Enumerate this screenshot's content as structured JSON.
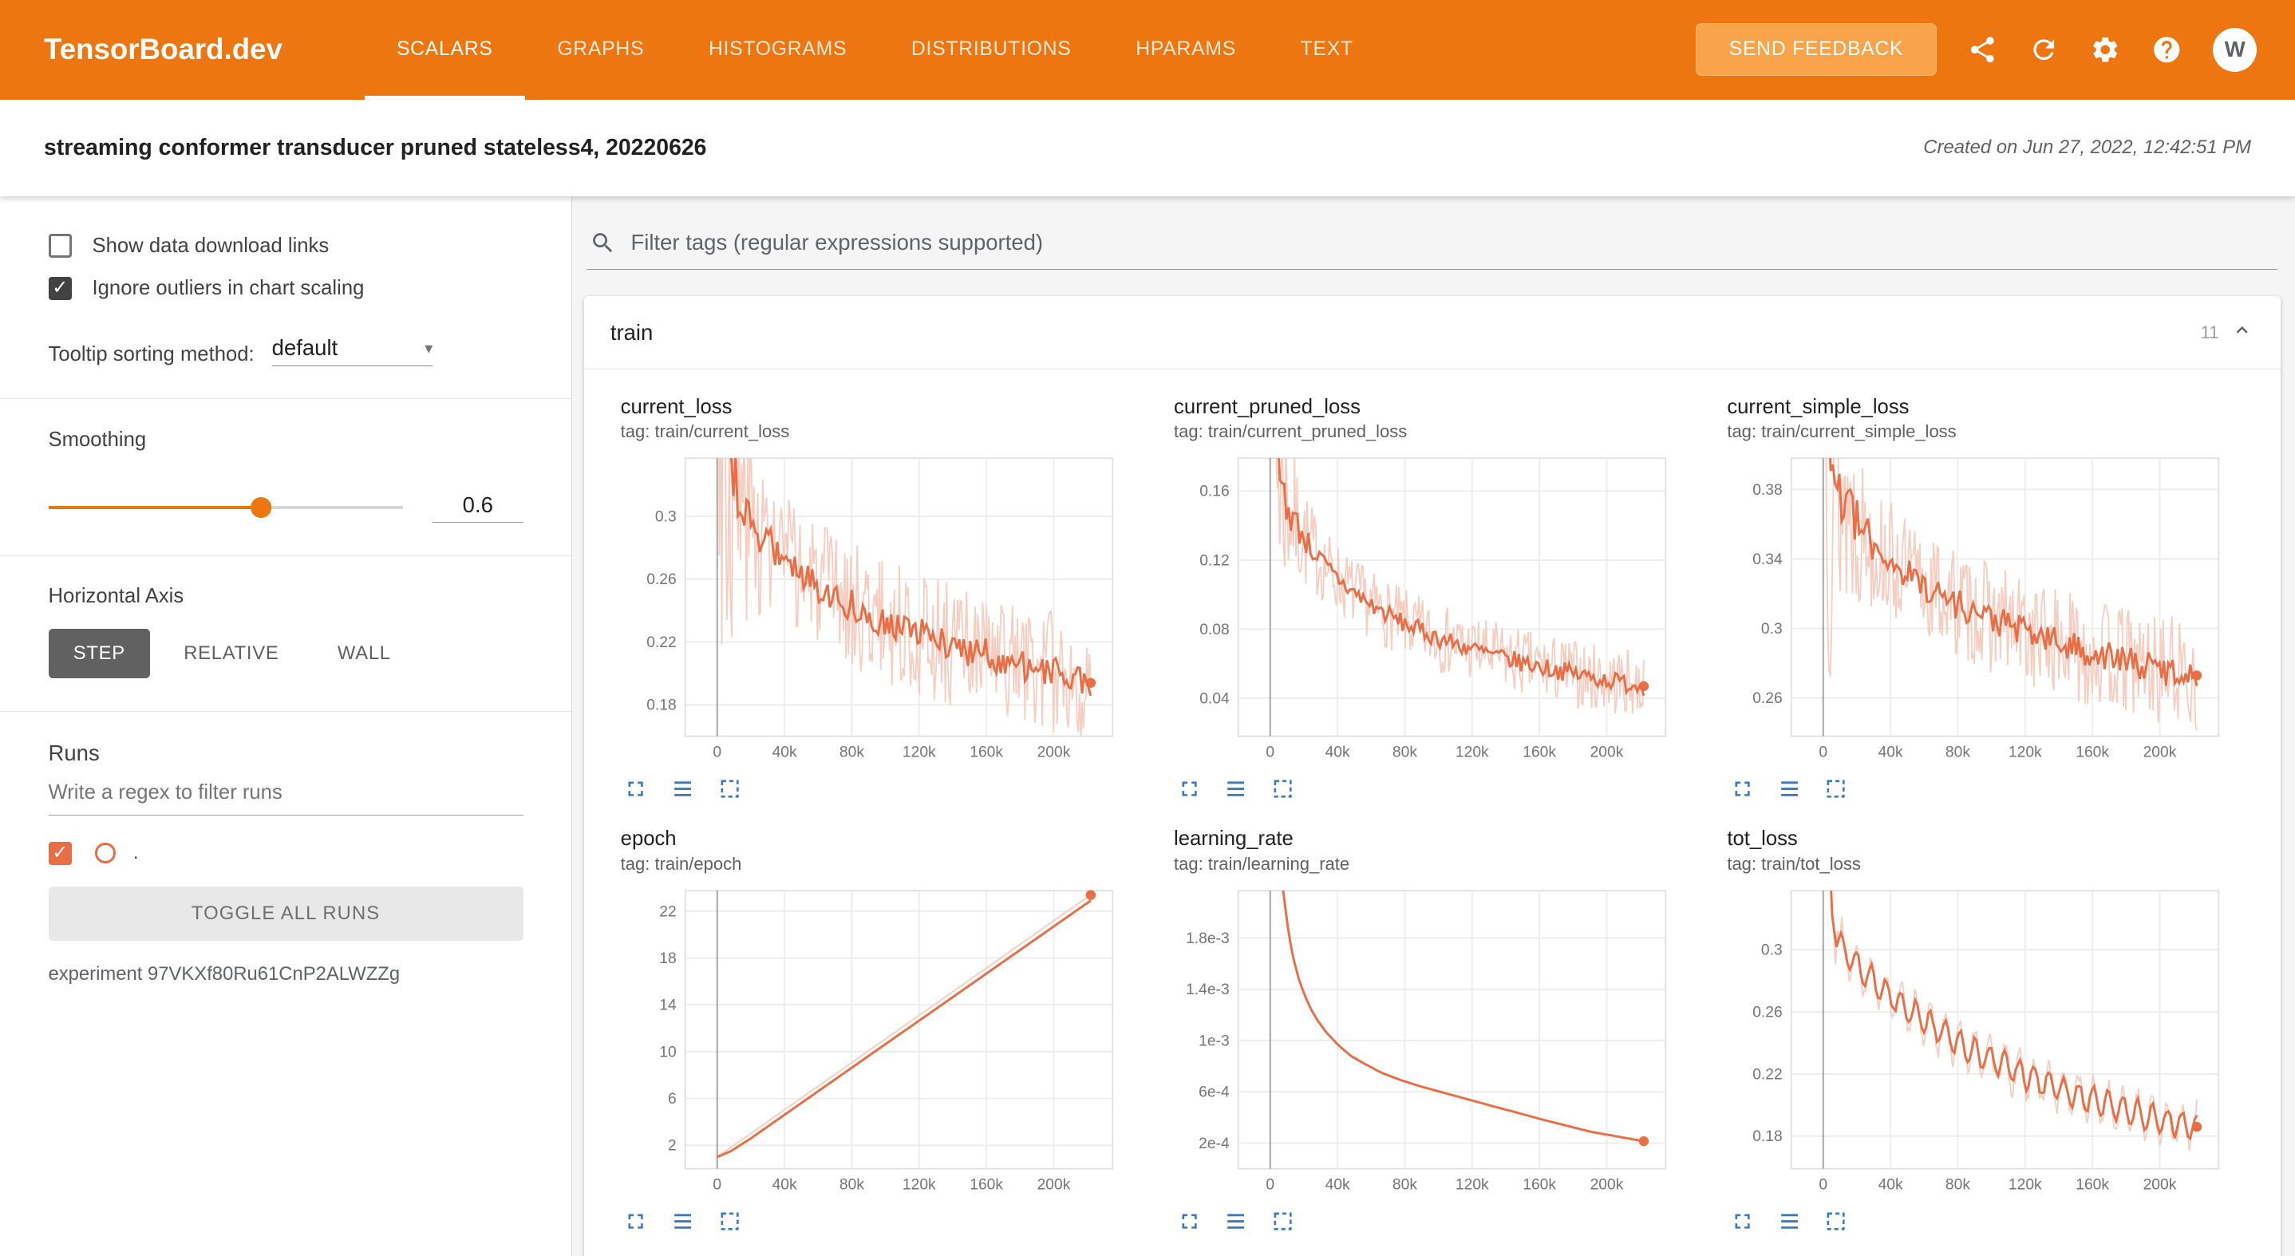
{
  "colors": {
    "header_bg": "#ee7611",
    "feedback_bg": "#f9a44a",
    "line": "#e96e45",
    "line_light": "#f5cdc1",
    "icon_blue": "#3b78c2",
    "axis_active_bg": "#616161"
  },
  "header": {
    "logo": "TensorBoard.dev",
    "tabs": [
      {
        "label": "SCALARS",
        "active": true
      },
      {
        "label": "GRAPHS",
        "active": false
      },
      {
        "label": "HISTOGRAMS",
        "active": false
      },
      {
        "label": "DISTRIBUTIONS",
        "active": false
      },
      {
        "label": "HPARAMS",
        "active": false
      },
      {
        "label": "TEXT",
        "active": false
      }
    ],
    "send_feedback": "SEND FEEDBACK",
    "avatar_letter": "W"
  },
  "subheader": {
    "title": "streaming conformer transducer pruned stateless4, 20220626",
    "created": "Created on Jun 27, 2022, 12:42:51 PM"
  },
  "sidebar": {
    "show_download": {
      "label": "Show data download links",
      "checked": false
    },
    "ignore_outliers": {
      "label": "Ignore outliers in chart scaling",
      "checked": true
    },
    "tooltip_sorting": {
      "label": "Tooltip sorting method:",
      "value": "default"
    },
    "smoothing": {
      "label": "Smoothing",
      "value": "0.6",
      "fraction": 0.6
    },
    "horizontal_axis": {
      "label": "Horizontal Axis",
      "options": [
        "STEP",
        "RELATIVE",
        "WALL"
      ],
      "selected": "STEP"
    },
    "runs": {
      "label": "Runs",
      "filter_placeholder": "Write a regex to filter runs",
      "run_name": ".",
      "run_checked": true,
      "toggle_all": "TOGGLE ALL RUNS",
      "experiment": "experiment 97VKXf80Ru61CnP2ALWZZg"
    }
  },
  "main": {
    "filter_placeholder": "Filter tags (regular expressions supported)",
    "section": {
      "name": "train",
      "count": "11"
    }
  },
  "chart_data": [
    {
      "type": "line",
      "title": "current_loss",
      "tag": "tag: train/current_loss",
      "x_axis": "step",
      "xlim": [
        -19000,
        235000
      ],
      "xticks": [
        [
          0,
          "0"
        ],
        [
          40000,
          "40k"
        ],
        [
          80000,
          "80k"
        ],
        [
          120000,
          "120k"
        ],
        [
          160000,
          "160k"
        ],
        [
          200000,
          "200k"
        ]
      ],
      "ylim": [
        0.16,
        0.337
      ],
      "yticks": [
        [
          0.18,
          "0.18"
        ],
        [
          0.22,
          "0.22"
        ],
        [
          0.26,
          "0.26"
        ],
        [
          0.3,
          "0.3"
        ]
      ],
      "smooth_trend": [
        [
          500,
          0.52
        ],
        [
          3000,
          0.36
        ],
        [
          6000,
          0.33
        ],
        [
          10000,
          0.315
        ],
        [
          16000,
          0.303
        ],
        [
          24000,
          0.291
        ],
        [
          34000,
          0.279
        ],
        [
          46000,
          0.267
        ],
        [
          60000,
          0.256
        ],
        [
          76000,
          0.246
        ],
        [
          94000,
          0.236
        ],
        [
          112000,
          0.228
        ],
        [
          132000,
          0.221
        ],
        [
          152000,
          0.214
        ],
        [
          172000,
          0.208
        ],
        [
          192000,
          0.202
        ],
        [
          210000,
          0.198
        ],
        [
          222000,
          0.194
        ]
      ],
      "noise": {
        "smooth": 0.0105,
        "raw": 0.04,
        "early_boost": 5,
        "early_scale": 9000
      },
      "end_dot": true,
      "seed": 3
    },
    {
      "type": "line",
      "title": "current_pruned_loss",
      "tag": "tag: train/current_pruned_loss",
      "x_axis": "step",
      "xlim": [
        -19000,
        235000
      ],
      "xticks": [
        [
          0,
          "0"
        ],
        [
          40000,
          "40k"
        ],
        [
          80000,
          "80k"
        ],
        [
          120000,
          "120k"
        ],
        [
          160000,
          "160k"
        ],
        [
          200000,
          "200k"
        ]
      ],
      "ylim": [
        0.018,
        0.179
      ],
      "yticks": [
        [
          0.04,
          "0.04"
        ],
        [
          0.08,
          "0.08"
        ],
        [
          0.12,
          "0.12"
        ],
        [
          0.16,
          "0.16"
        ]
      ],
      "smooth_trend": [
        [
          500,
          0.4
        ],
        [
          3000,
          0.185
        ],
        [
          6000,
          0.165
        ],
        [
          10000,
          0.152
        ],
        [
          16000,
          0.14
        ],
        [
          24000,
          0.127
        ],
        [
          34000,
          0.115
        ],
        [
          46000,
          0.104
        ],
        [
          60000,
          0.094
        ],
        [
          76000,
          0.085
        ],
        [
          94000,
          0.077
        ],
        [
          112000,
          0.071
        ],
        [
          132000,
          0.065
        ],
        [
          152000,
          0.06
        ],
        [
          172000,
          0.056
        ],
        [
          192000,
          0.052
        ],
        [
          210000,
          0.049
        ],
        [
          222000,
          0.047
        ]
      ],
      "noise": {
        "smooth": 0.0055,
        "raw": 0.02,
        "early_boost": 5,
        "early_scale": 9000
      },
      "end_dot": true,
      "seed": 7
    },
    {
      "type": "line",
      "title": "current_simple_loss",
      "tag": "tag: train/current_simple_loss",
      "x_axis": "step",
      "xlim": [
        -19000,
        235000
      ],
      "xticks": [
        [
          0,
          "0"
        ],
        [
          40000,
          "40k"
        ],
        [
          80000,
          "80k"
        ],
        [
          120000,
          "120k"
        ],
        [
          160000,
          "160k"
        ],
        [
          200000,
          "200k"
        ]
      ],
      "ylim": [
        0.238,
        0.398
      ],
      "yticks": [
        [
          0.26,
          "0.26"
        ],
        [
          0.3,
          "0.3"
        ],
        [
          0.34,
          "0.34"
        ],
        [
          0.38,
          "0.38"
        ]
      ],
      "smooth_trend": [
        [
          500,
          0.62
        ],
        [
          3000,
          0.41
        ],
        [
          6000,
          0.392
        ],
        [
          10000,
          0.378
        ],
        [
          16000,
          0.366
        ],
        [
          24000,
          0.355
        ],
        [
          34000,
          0.344
        ],
        [
          46000,
          0.334
        ],
        [
          60000,
          0.325
        ],
        [
          76000,
          0.316
        ],
        [
          94000,
          0.308
        ],
        [
          112000,
          0.301
        ],
        [
          132000,
          0.294
        ],
        [
          152000,
          0.288
        ],
        [
          172000,
          0.283
        ],
        [
          192000,
          0.278
        ],
        [
          210000,
          0.275
        ],
        [
          222000,
          0.273
        ]
      ],
      "noise": {
        "smooth": 0.009,
        "raw": 0.032,
        "early_boost": 5,
        "early_scale": 9000
      },
      "end_dot": true,
      "seed": 13
    },
    {
      "type": "line",
      "title": "epoch",
      "tag": "tag: train/epoch",
      "x_axis": "step",
      "xlim": [
        -19000,
        235000
      ],
      "xticks": [
        [
          0,
          "0"
        ],
        [
          40000,
          "40k"
        ],
        [
          80000,
          "80k"
        ],
        [
          120000,
          "120k"
        ],
        [
          160000,
          "160k"
        ],
        [
          200000,
          "200k"
        ]
      ],
      "ylim": [
        0,
        23.75
      ],
      "yticks": [
        [
          2,
          "2"
        ],
        [
          6,
          "6"
        ],
        [
          10,
          "10"
        ],
        [
          14,
          "14"
        ],
        [
          18,
          "18"
        ],
        [
          22,
          "22"
        ]
      ],
      "raw_trend": [
        [
          0,
          1.0
        ],
        [
          222000,
          23.4
        ]
      ],
      "smooth_trend": [
        [
          0,
          1.0
        ],
        [
          8000,
          1.5
        ],
        [
          20000,
          2.6
        ],
        [
          222000,
          22.9
        ]
      ],
      "end_dot": true,
      "dot_on": "raw",
      "seed": 21
    },
    {
      "type": "line",
      "title": "learning_rate",
      "tag": "tag: train/learning_rate",
      "x_axis": "step",
      "xlim": [
        -19000,
        235000
      ],
      "xticks": [
        [
          0,
          "0"
        ],
        [
          40000,
          "40k"
        ],
        [
          80000,
          "80k"
        ],
        [
          120000,
          "120k"
        ],
        [
          160000,
          "160k"
        ],
        [
          200000,
          "200k"
        ]
      ],
      "ylim": [
        0,
        0.00217
      ],
      "yticks": [
        [
          0.0002,
          "2e-4"
        ],
        [
          0.0006,
          "6e-4"
        ],
        [
          0.001,
          "1e-3"
        ],
        [
          0.0014,
          "1.4e-3"
        ],
        [
          0.0018,
          "1.8e-3"
        ]
      ],
      "smooth_trend": [
        [
          5500,
          0.00235
        ],
        [
          7000,
          0.00225
        ],
        [
          8000,
          0.00214
        ],
        [
          9000,
          0.00203
        ],
        [
          10000,
          0.00193
        ],
        [
          12000,
          0.00176
        ],
        [
          14000,
          0.00163
        ],
        [
          17000,
          0.00148
        ],
        [
          20000,
          0.00137
        ],
        [
          24000,
          0.00125
        ],
        [
          28000,
          0.00116
        ],
        [
          33000,
          0.00107
        ],
        [
          40000,
          0.00097
        ],
        [
          48000,
          0.00088
        ],
        [
          56000,
          0.00082
        ],
        [
          66000,
          0.00075
        ],
        [
          78000,
          0.00069
        ],
        [
          90000,
          0.00064
        ],
        [
          104000,
          0.00059
        ],
        [
          118000,
          0.00054
        ],
        [
          132000,
          0.00049
        ],
        [
          146000,
          0.00044
        ],
        [
          160000,
          0.00039
        ],
        [
          175000,
          0.00034
        ],
        [
          190000,
          0.00029
        ],
        [
          205000,
          0.000255
        ],
        [
          222000,
          0.000215
        ]
      ],
      "end_dot": true,
      "seed": 29
    },
    {
      "type": "line",
      "title": "tot_loss",
      "tag": "tag: train/tot_loss",
      "x_axis": "step",
      "xlim": [
        -19000,
        235000
      ],
      "xticks": [
        [
          0,
          "0"
        ],
        [
          40000,
          "40k"
        ],
        [
          80000,
          "80k"
        ],
        [
          120000,
          "120k"
        ],
        [
          160000,
          "160k"
        ],
        [
          200000,
          "200k"
        ]
      ],
      "ylim": [
        0.159,
        0.338
      ],
      "yticks": [
        [
          0.18,
          "0.18"
        ],
        [
          0.22,
          "0.22"
        ],
        [
          0.26,
          "0.26"
        ],
        [
          0.3,
          "0.3"
        ]
      ],
      "smooth_trend": [
        [
          1500,
          0.5
        ],
        [
          3500,
          0.36
        ],
        [
          6000,
          0.318
        ],
        [
          9000,
          0.305
        ],
        [
          14000,
          0.297
        ],
        [
          20000,
          0.29
        ],
        [
          28000,
          0.281
        ],
        [
          38000,
          0.272
        ],
        [
          50000,
          0.262
        ],
        [
          64000,
          0.251
        ],
        [
          80000,
          0.24
        ],
        [
          96000,
          0.231
        ],
        [
          112000,
          0.223
        ],
        [
          130000,
          0.215
        ],
        [
          148000,
          0.207
        ],
        [
          166000,
          0.201
        ],
        [
          184000,
          0.195
        ],
        [
          202000,
          0.19
        ],
        [
          222000,
          0.186
        ]
      ],
      "noise": {
        "smooth": 0.002,
        "raw": 0.005,
        "early_boost": 16,
        "early_scale": 3000
      },
      "oscillation": {
        "period": 8800,
        "amp": 0.0085,
        "raw_amp": 0.013
      },
      "end_dot": true,
      "seed": 41
    }
  ]
}
